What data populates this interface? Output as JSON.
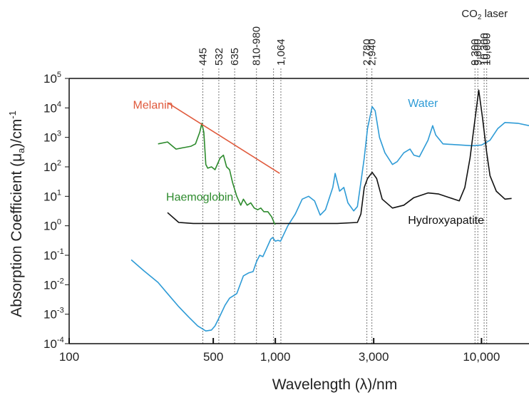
{
  "chart_data": {
    "type": "line",
    "xscale": "log",
    "yscale": "log",
    "xlim": [
      100,
      17000
    ],
    "ylim": [
      0.0001,
      100000
    ],
    "xlabel": "Wavelength (λ)/nm",
    "ylabel_parts": [
      "Absorption Coefficient (μ",
      "a",
      ")/cm",
      "-1"
    ],
    "x_ticks": [
      {
        "value": 100,
        "label": "100"
      },
      {
        "value": 500,
        "label": "500"
      },
      {
        "value": 1000,
        "label": "1,000"
      },
      {
        "value": 3000,
        "label": "3,000"
      },
      {
        "value": 10000,
        "label": "10,000"
      }
    ],
    "y_ticks": [
      {
        "value": 0.0001,
        "base": "10",
        "exp": "-4"
      },
      {
        "value": 0.001,
        "base": "10",
        "exp": "-3"
      },
      {
        "value": 0.01,
        "base": "10",
        "exp": "-2"
      },
      {
        "value": 0.1,
        "base": "10",
        "exp": "-1"
      },
      {
        "value": 1,
        "base": "10",
        "exp": "0"
      },
      {
        "value": 10,
        "base": "10",
        "exp": "1"
      },
      {
        "value": 100,
        "base": "10",
        "exp": "2"
      },
      {
        "value": 1000,
        "base": "10",
        "exp": "3"
      },
      {
        "value": 10000,
        "base": "10",
        "exp": "4"
      },
      {
        "value": 100000,
        "base": "10",
        "exp": "5"
      }
    ],
    "laser_lines": [
      {
        "value": 445,
        "label": "445"
      },
      {
        "value": 532,
        "label": "532"
      },
      {
        "value": 635,
        "label": "635"
      },
      {
        "value": 810,
        "label": "810-980"
      },
      {
        "value": 980,
        "label": ""
      },
      {
        "value": 1064,
        "label": "1,064"
      },
      {
        "value": 2780,
        "label": "2,780"
      },
      {
        "value": 2940,
        "label": "2,940"
      },
      {
        "value": 9300,
        "label": "9,300"
      },
      {
        "value": 9600,
        "label": "9,600"
      },
      {
        "value": 10300,
        "label": "10,300"
      },
      {
        "value": 10600,
        "label": "10,600"
      }
    ],
    "co2_label": "CO",
    "co2_sub": "2",
    "co2_suffix": " laser",
    "series": [
      {
        "name": "Water",
        "color": "#2e9bd6",
        "points": [
          [
            200,
            0.07
          ],
          [
            230,
            0.03
          ],
          [
            270,
            0.012
          ],
          [
            300,
            0.005
          ],
          [
            340,
            0.0018
          ],
          [
            380,
            0.0008
          ],
          [
            420,
            0.0004
          ],
          [
            460,
            0.00027
          ],
          [
            490,
            0.00029
          ],
          [
            510,
            0.0004
          ],
          [
            540,
            0.0009
          ],
          [
            570,
            0.002
          ],
          [
            600,
            0.0035
          ],
          [
            650,
            0.005
          ],
          [
            700,
            0.02
          ],
          [
            740,
            0.025
          ],
          [
            780,
            0.028
          ],
          [
            810,
            0.06
          ],
          [
            840,
            0.1
          ],
          [
            870,
            0.09
          ],
          [
            900,
            0.15
          ],
          [
            950,
            0.35
          ],
          [
            970,
            0.4
          ],
          [
            1000,
            0.3
          ],
          [
            1030,
            0.32
          ],
          [
            1060,
            0.3
          ],
          [
            1150,
            1.0
          ],
          [
            1250,
            2.5
          ],
          [
            1350,
            8
          ],
          [
            1450,
            10
          ],
          [
            1550,
            7
          ],
          [
            1650,
            2.3
          ],
          [
            1750,
            3.5
          ],
          [
            1900,
            20
          ],
          [
            1950,
            60
          ],
          [
            2050,
            15
          ],
          [
            2150,
            20
          ],
          [
            2250,
            6
          ],
          [
            2400,
            3.2
          ],
          [
            2500,
            4.5
          ],
          [
            2600,
            30
          ],
          [
            2700,
            200
          ],
          [
            2800,
            2000
          ],
          [
            2950,
            11000
          ],
          [
            3050,
            8000
          ],
          [
            3200,
            1000
          ],
          [
            3400,
            300
          ],
          [
            3700,
            120
          ],
          [
            3900,
            150
          ],
          [
            4200,
            300
          ],
          [
            4500,
            400
          ],
          [
            4700,
            250
          ],
          [
            5000,
            220
          ],
          [
            5500,
            800
          ],
          [
            5800,
            2500
          ],
          [
            6000,
            1200
          ],
          [
            6500,
            600
          ],
          [
            7000,
            580
          ],
          [
            8000,
            550
          ],
          [
            9000,
            520
          ],
          [
            10000,
            550
          ],
          [
            11000,
            800
          ],
          [
            12000,
            2000
          ],
          [
            13000,
            3200
          ],
          [
            15000,
            3000
          ],
          [
            17000,
            2500
          ]
        ]
      },
      {
        "name": "Hydroxyapatite",
        "color": "#111111",
        "points": [
          [
            300,
            2.8
          ],
          [
            340,
            1.3
          ],
          [
            400,
            1.2
          ],
          [
            600,
            1.2
          ],
          [
            1000,
            1.2
          ],
          [
            2000,
            1.2
          ],
          [
            2500,
            1.3
          ],
          [
            2600,
            2.5
          ],
          [
            2700,
            20
          ],
          [
            2800,
            40
          ],
          [
            2950,
            65
          ],
          [
            3100,
            40
          ],
          [
            3300,
            8
          ],
          [
            3700,
            4
          ],
          [
            4200,
            5
          ],
          [
            4700,
            9
          ],
          [
            5500,
            13
          ],
          [
            6200,
            12
          ],
          [
            7000,
            9
          ],
          [
            7800,
            7
          ],
          [
            8300,
            20
          ],
          [
            8800,
            200
          ],
          [
            9300,
            4000
          ],
          [
            9700,
            40000
          ],
          [
            10100,
            5000
          ],
          [
            10600,
            300
          ],
          [
            11000,
            50
          ],
          [
            11800,
            15
          ],
          [
            13000,
            8
          ],
          [
            14000,
            8.5
          ]
        ]
      },
      {
        "name": "Haemoglobin",
        "color": "#2c8a2c",
        "points": [
          [
            270,
            600
          ],
          [
            300,
            700
          ],
          [
            330,
            400
          ],
          [
            360,
            450
          ],
          [
            390,
            500
          ],
          [
            410,
            600
          ],
          [
            430,
            1500
          ],
          [
            440,
            3000
          ],
          [
            450,
            1500
          ],
          [
            460,
            120
          ],
          [
            470,
            90
          ],
          [
            490,
            100
          ],
          [
            510,
            80
          ],
          [
            540,
            200
          ],
          [
            560,
            250
          ],
          [
            580,
            100
          ],
          [
            600,
            80
          ],
          [
            620,
            30
          ],
          [
            650,
            10
          ],
          [
            680,
            5
          ],
          [
            700,
            8
          ],
          [
            730,
            5
          ],
          [
            760,
            6
          ],
          [
            790,
            4
          ],
          [
            820,
            3.5
          ],
          [
            850,
            4
          ],
          [
            880,
            3
          ],
          [
            920,
            3
          ],
          [
            960,
            2
          ],
          [
            990,
            1.2
          ],
          [
            1000,
            1.1
          ]
        ]
      },
      {
        "name": "Melanin",
        "color": "#e05a3c",
        "points": [
          [
            300,
            15000
          ],
          [
            1050,
            60
          ]
        ]
      }
    ]
  }
}
